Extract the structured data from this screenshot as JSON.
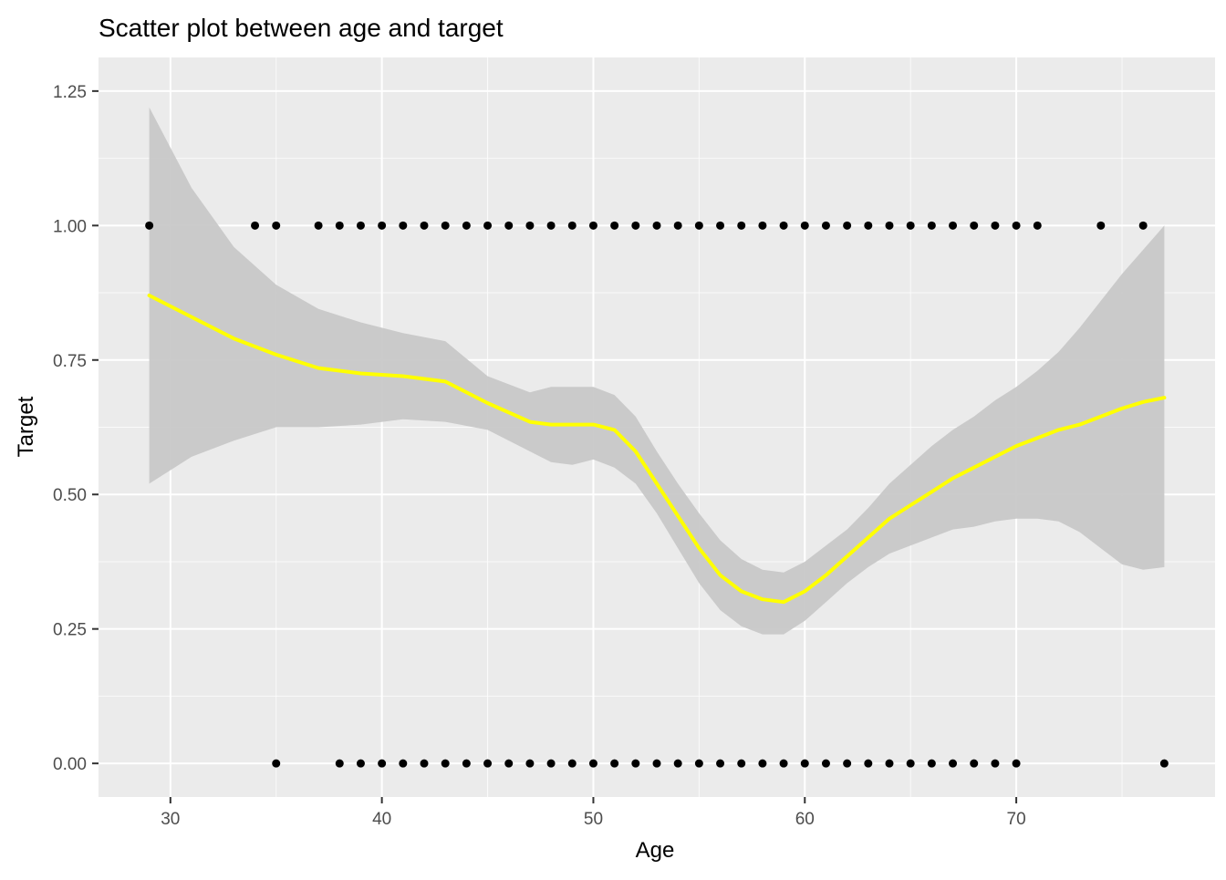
{
  "chart_data": {
    "type": "scatter",
    "title": "Scatter plot between age and target",
    "xlabel": "Age",
    "ylabel": "Target",
    "xlim": [
      26.6,
      79.4
    ],
    "ylim": [
      -0.0625,
      1.3125
    ],
    "x_ticks": [
      30,
      40,
      50,
      60,
      70
    ],
    "y_ticks": [
      0.0,
      0.25,
      0.5,
      0.75,
      1.0,
      1.25
    ],
    "x_tick_labels": [
      "30",
      "40",
      "50",
      "60",
      "70"
    ],
    "y_tick_labels": [
      "0.00",
      "0.25",
      "0.50",
      "0.75",
      "1.00",
      "1.25"
    ],
    "grid": true,
    "colors": {
      "panel_background": "#ebebeb",
      "grid_major": "#ffffff",
      "points": "#000000",
      "smooth_line": "#ffff00",
      "confidence_band": "#c8c8c8"
    },
    "points": {
      "target_1_ages": [
        29,
        34,
        35,
        37,
        38,
        39,
        40,
        41,
        42,
        43,
        44,
        45,
        46,
        47,
        48,
        49,
        50,
        51,
        52,
        53,
        54,
        55,
        56,
        57,
        58,
        59,
        60,
        61,
        62,
        63,
        64,
        65,
        66,
        67,
        68,
        69,
        70,
        71,
        74,
        76
      ],
      "target_0_ages": [
        35,
        38,
        39,
        40,
        41,
        42,
        43,
        44,
        45,
        46,
        47,
        48,
        49,
        50,
        51,
        52,
        53,
        54,
        55,
        56,
        57,
        58,
        59,
        60,
        61,
        62,
        63,
        64,
        65,
        66,
        67,
        68,
        69,
        70,
        77
      ]
    },
    "smooth": {
      "x": [
        29,
        31,
        33,
        35,
        37,
        39,
        41,
        43,
        45,
        47,
        48,
        49,
        50,
        51,
        52,
        53,
        54,
        55,
        56,
        57,
        58,
        59,
        60,
        61,
        62,
        63,
        64,
        65,
        66,
        67,
        68,
        69,
        70,
        71,
        72,
        73,
        74,
        75,
        76,
        77
      ],
      "y": [
        0.87,
        0.83,
        0.79,
        0.76,
        0.735,
        0.725,
        0.72,
        0.71,
        0.67,
        0.635,
        0.63,
        0.63,
        0.63,
        0.62,
        0.58,
        0.52,
        0.46,
        0.4,
        0.35,
        0.32,
        0.305,
        0.3,
        0.32,
        0.35,
        0.385,
        0.42,
        0.455,
        0.48,
        0.505,
        0.53,
        0.55,
        0.57,
        0.59,
        0.605,
        0.62,
        0.63,
        0.645,
        0.66,
        0.672,
        0.68
      ],
      "lower": [
        0.52,
        0.57,
        0.6,
        0.625,
        0.625,
        0.63,
        0.64,
        0.635,
        0.62,
        0.58,
        0.56,
        0.555,
        0.565,
        0.55,
        0.52,
        0.465,
        0.4,
        0.335,
        0.285,
        0.255,
        0.24,
        0.24,
        0.265,
        0.3,
        0.335,
        0.365,
        0.39,
        0.405,
        0.42,
        0.435,
        0.44,
        0.45,
        0.455,
        0.455,
        0.45,
        0.43,
        0.4,
        0.37,
        0.36,
        0.365
      ],
      "upper": [
        1.22,
        1.07,
        0.96,
        0.89,
        0.845,
        0.82,
        0.8,
        0.785,
        0.72,
        0.69,
        0.7,
        0.7,
        0.7,
        0.685,
        0.645,
        0.58,
        0.52,
        0.465,
        0.415,
        0.38,
        0.36,
        0.355,
        0.375,
        0.405,
        0.435,
        0.475,
        0.52,
        0.555,
        0.59,
        0.62,
        0.645,
        0.675,
        0.7,
        0.73,
        0.765,
        0.81,
        0.86,
        0.91,
        0.955,
        1.0
      ]
    }
  }
}
